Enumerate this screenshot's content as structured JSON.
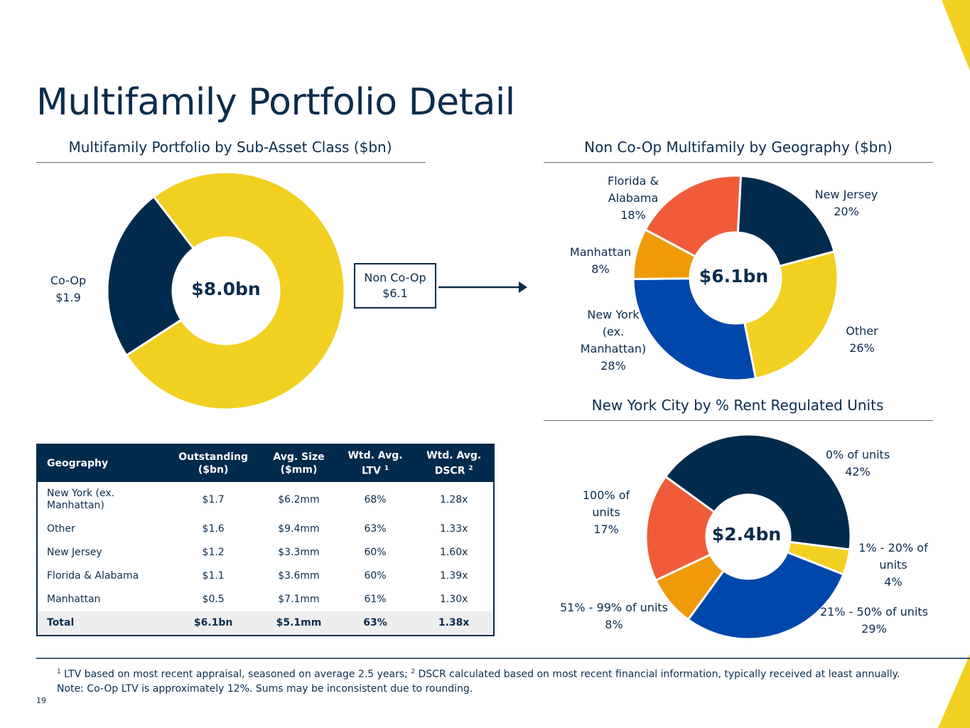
{
  "title": "Multifamily Portfolio Detail",
  "sections": {
    "left": "Multifamily Portfolio by Sub-Asset Class ($bn)",
    "right_top": "Non Co-Op Multifamily by Geography ($bn)",
    "right_bottom": "New York City by % Rent Regulated Units"
  },
  "callout": {
    "line1": "Non Co-Op",
    "line2": "$6.1"
  },
  "colors": {
    "navy": "#002b4d",
    "yellow": "#f2d022",
    "orange": "#f05c3a",
    "amber": "#f09a0a",
    "blue": "#0047ab",
    "accent": "#f2d022"
  },
  "chart_data": [
    {
      "type": "pie",
      "center_label": "$8.0bn",
      "slices": [
        {
          "name": "Co-Op",
          "label_line1": "Co-Op",
          "label_line2": "$1.9",
          "value": 1.9,
          "color": "#002b4d"
        },
        {
          "name": "Non Co-Op",
          "value": 6.1,
          "color": "#f2d022"
        }
      ]
    },
    {
      "type": "pie",
      "center_label": "$6.1bn",
      "slices": [
        {
          "name": "New Jersey",
          "lines": [
            "New Jersey",
            "20%"
          ],
          "value": 20,
          "color": "#002b4d"
        },
        {
          "name": "Other",
          "lines": [
            "Other",
            "26%"
          ],
          "value": 26,
          "color": "#f2d022"
        },
        {
          "name": "New York (ex. Manhattan)",
          "lines": [
            "New York",
            "(ex.",
            "Manhattan)",
            "28%"
          ],
          "value": 28,
          "color": "#0047ab"
        },
        {
          "name": "Manhattan",
          "lines": [
            "Manhattan",
            "8%"
          ],
          "value": 8,
          "color": "#f09a0a"
        },
        {
          "name": "Florida & Alabama",
          "lines": [
            "Florida &",
            "Alabama",
            "18%"
          ],
          "value": 18,
          "color": "#f05c3a"
        }
      ]
    },
    {
      "type": "pie",
      "center_label": "$2.4bn",
      "slices": [
        {
          "name": "0% of units",
          "lines": [
            "0% of units",
            "42%"
          ],
          "value": 42,
          "color": "#002b4d"
        },
        {
          "name": "1% - 20% of units",
          "lines": [
            "1% - 20% of",
            "units",
            "4%"
          ],
          "value": 4,
          "color": "#f2d022"
        },
        {
          "name": "21% - 50% of units",
          "lines": [
            "21% - 50% of units",
            "29%"
          ],
          "value": 29,
          "color": "#0047ab"
        },
        {
          "name": "51% - 99% of units",
          "lines": [
            "51% - 99% of units",
            "8%"
          ],
          "value": 8,
          "color": "#f09a0a"
        },
        {
          "name": "100% of units",
          "lines": [
            "100% of",
            "units",
            "17%"
          ],
          "value": 17,
          "color": "#f05c3a"
        }
      ]
    }
  ],
  "table": {
    "headers": [
      {
        "l1": "Geography",
        "l2": ""
      },
      {
        "l1": "Outstanding",
        "l2": "($bn)"
      },
      {
        "l1": "Avg. Size",
        "l2": "($mm)"
      },
      {
        "l1": "Wtd. Avg.",
        "l2": "LTV",
        "sup": "1"
      },
      {
        "l1": "Wtd. Avg.",
        "l2": "DSCR",
        "sup": "2"
      }
    ],
    "rows": [
      [
        "New York (ex. Manhattan)",
        "$1.7",
        "$6.2mm",
        "68%",
        "1.28x"
      ],
      [
        "Other",
        "$1.6",
        "$9.4mm",
        "63%",
        "1.33x"
      ],
      [
        "New Jersey",
        "$1.2",
        "$3.3mm",
        "60%",
        "1.60x"
      ],
      [
        "Florida & Alabama",
        "$1.1",
        "$3.6mm",
        "60%",
        "1.39x"
      ],
      [
        "Manhattan",
        "$0.5",
        "$7.1mm",
        "61%",
        "1.30x"
      ]
    ],
    "total": [
      "Total",
      "$6.1bn",
      "$5.1mm",
      "63%",
      "1.38x"
    ]
  },
  "footnotes": {
    "sup1": "1",
    "note1": " LTV based on most recent appraisal, seasoned on average 2.5 years;  ",
    "sup2": "2",
    "note2": " DSCR calculated based on most recent financial information, typically received at least annually.",
    "line2": "Note: Co-Op LTV is approximately 12%.  Sums may be inconsistent due to rounding."
  },
  "page_number": "19"
}
